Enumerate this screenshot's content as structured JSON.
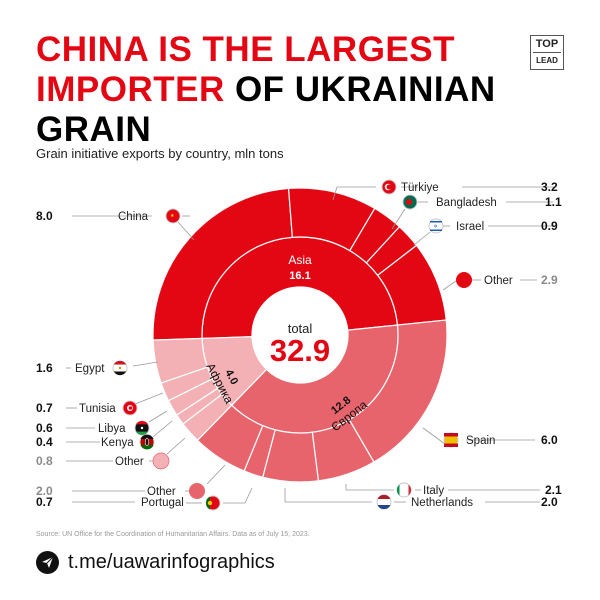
{
  "header": {
    "title_red_1": "CHINA IS THE LARGEST",
    "title_red_2": "IMPORTER",
    "title_black_2": " OF UKRAINIAN",
    "title_black_3": "GRAIN",
    "subtitle": "Grain initiative exports by country, mln tons",
    "logo_top": "TOP",
    "logo_bottom": "LEAD"
  },
  "center": {
    "label": "total",
    "value": "32.9"
  },
  "regions": [
    {
      "name": "Asia",
      "value": "16.1"
    },
    {
      "name": "Європа",
      "value": "12.8"
    },
    {
      "name": "Африка",
      "value": "4.0"
    }
  ],
  "labels": {
    "china": {
      "name": "China",
      "value": "8.0"
    },
    "turkiye": {
      "name": "Türkiye",
      "value": "3.2"
    },
    "bangladesh": {
      "name": "Bangladesh",
      "value": "1.1"
    },
    "israel": {
      "name": "Israel",
      "value": "0.9"
    },
    "asia_other": {
      "name": "Other",
      "value": "2.9"
    },
    "spain": {
      "name": "Spain",
      "value": "6.0"
    },
    "italy": {
      "name": "Italy",
      "value": "2.1"
    },
    "netherlands": {
      "name": "Netherlands",
      "value": "2.0"
    },
    "portugal": {
      "name": "Portugal",
      "value": "0.7"
    },
    "europe_other": {
      "name": "Other",
      "value": "2.0"
    },
    "egypt": {
      "name": "Egypt",
      "value": "1.6"
    },
    "tunisia": {
      "name": "Tunisia",
      "value": "0.7"
    },
    "libya": {
      "name": "Libya",
      "value": "0.6"
    },
    "kenya": {
      "name": "Kenya",
      "value": "0.4"
    },
    "africa_other": {
      "name": "Other",
      "value": "0.8"
    }
  },
  "colors": {
    "asia": "#e30613",
    "europe": "#e8646c",
    "africa": "#f4b1b5",
    "other_value_gray": "#8a8a8a",
    "title_red": "#e30613"
  },
  "footer": {
    "source": "Source: UN Office for the Coordination of Humanitarian Affairs. Data as of July 15, 2023.",
    "link": "t.me/uawarinfographics"
  },
  "chart_data": {
    "type": "sunburst",
    "title": "China is the largest importer of Ukrainian grain",
    "subtitle": "Grain initiative exports by country, mln tons",
    "total": 32.9,
    "inner_ring": {
      "categories": [
        "Asia",
        "Європа",
        "Африка"
      ],
      "values": [
        16.1,
        12.8,
        4.0
      ]
    },
    "outer_ring": {
      "series": [
        {
          "name": "Asia",
          "categories": [
            "China",
            "Türkiye",
            "Bangladesh",
            "Israel",
            "Other"
          ],
          "values": [
            8.0,
            3.2,
            1.1,
            0.9,
            2.9
          ]
        },
        {
          "name": "Європа",
          "categories": [
            "Spain",
            "Italy",
            "Netherlands",
            "Portugal",
            "Other"
          ],
          "values": [
            6.0,
            2.1,
            2.0,
            0.7,
            2.0
          ]
        },
        {
          "name": "Африка",
          "categories": [
            "Other",
            "Kenya",
            "Libya",
            "Tunisia",
            "Egypt"
          ],
          "values": [
            0.8,
            0.4,
            0.6,
            0.7,
            1.6
          ]
        }
      ]
    },
    "unit": "mln tons"
  }
}
